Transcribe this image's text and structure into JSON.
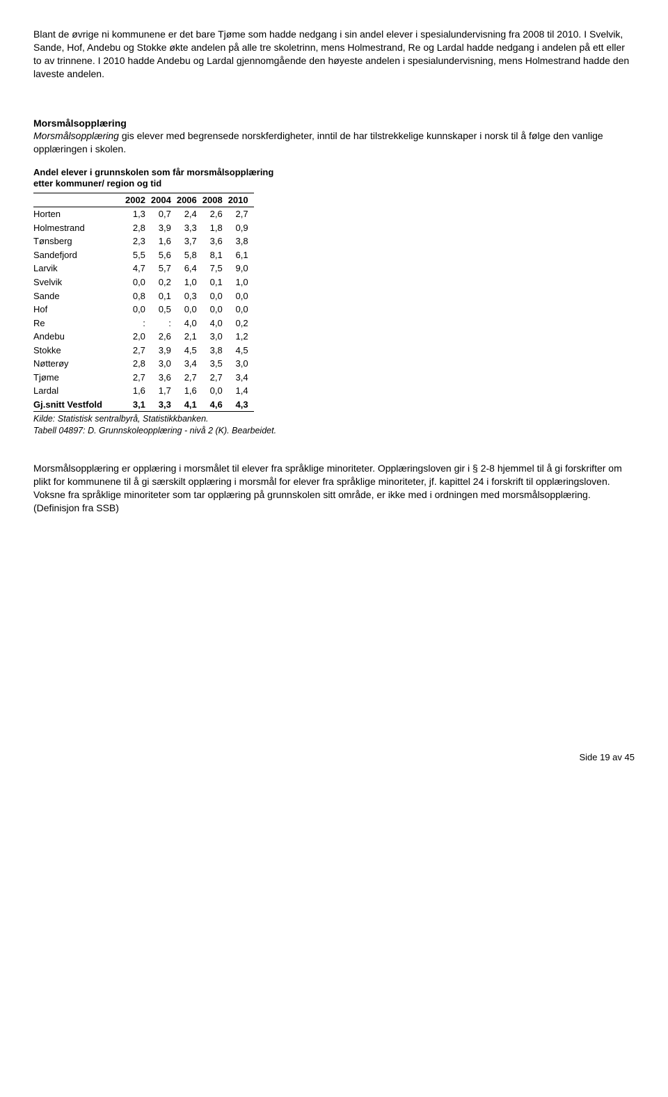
{
  "para1": "Blant de øvrige ni kommunene er det bare Tjøme som hadde nedgang i sin andel elever i spesialundervisning fra 2008 til 2010. I Svelvik, Sande, Hof, Andebu og Stokke økte andelen på alle tre skoletrinn, mens Holmestrand, Re og Lardal hadde nedgang i andelen på ett eller to av trinnene. I 2010 hadde Andebu og Lardal gjennomgående den høyeste andelen i spesialundervisning, mens Holmestrand hadde den laveste andelen.",
  "heading2": "Morsmålsopplæring",
  "para2_lead_italic": "Morsmålsopplæring",
  "para2_rest": " gis elever med begrensede norskferdigheter, inntil de har tilstrekkelige kunnskaper i norsk til å følge den vanlige opplæringen i skolen.",
  "table": {
    "caption_l1": "Andel elever i grunnskolen som får morsmålsopplæring",
    "caption_l2": "etter kommuner/ region og tid",
    "columns": [
      "",
      "2002",
      "2004",
      "2006",
      "2008",
      "2010"
    ],
    "rows": [
      [
        "Horten",
        "1,3",
        "0,7",
        "2,4",
        "2,6",
        "2,7"
      ],
      [
        "Holmestrand",
        "2,8",
        "3,9",
        "3,3",
        "1,8",
        "0,9"
      ],
      [
        "Tønsberg",
        "2,3",
        "1,6",
        "3,7",
        "3,6",
        "3,8"
      ],
      [
        "Sandefjord",
        "5,5",
        "5,6",
        "5,8",
        "8,1",
        "6,1"
      ],
      [
        "Larvik",
        "4,7",
        "5,7",
        "6,4",
        "7,5",
        "9,0"
      ],
      [
        "Svelvik",
        "0,0",
        "0,2",
        "1,0",
        "0,1",
        "1,0"
      ],
      [
        "Sande",
        "0,8",
        "0,1",
        "0,3",
        "0,0",
        "0,0"
      ],
      [
        "Hof",
        "0,0",
        "0,5",
        "0,0",
        "0,0",
        "0,0"
      ],
      [
        "Re",
        ":",
        ":",
        "4,0",
        "4,0",
        "0,2"
      ],
      [
        "Andebu",
        "2,0",
        "2,6",
        "2,1",
        "3,0",
        "1,2"
      ],
      [
        "Stokke",
        "2,7",
        "3,9",
        "4,5",
        "3,8",
        "4,5"
      ],
      [
        "Nøtterøy",
        "2,8",
        "3,0",
        "3,4",
        "3,5",
        "3,0"
      ],
      [
        "Tjøme",
        "2,7",
        "3,6",
        "2,7",
        "2,7",
        "3,4"
      ],
      [
        "Lardal",
        "1,6",
        "1,7",
        "1,6",
        "0,0",
        "1,4"
      ],
      [
        "Gj.snitt Vestfold",
        "3,1",
        "3,3",
        "4,1",
        "4,6",
        "4,3"
      ]
    ],
    "source_l1": "Kilde: Statistisk sentralbyrå, Statistikkbanken.",
    "source_l2": "Tabell 04897: D. Grunnskoleopplæring - nivå 2 (K). Bearbeidet."
  },
  "para3": "Morsmålsopplæring er opplæring i morsmålet til elever fra språklige minoriteter. Opplæringsloven gir i § 2-8 hjemmel til å gi forskrifter om plikt for kommunene til å gi særskilt opplæring i morsmål for elever fra språklige minoriteter, jf. kapittel 24 i forskrift til opplæringsloven. Voksne fra språklige minoriteter som tar opplæring på grunnskolen sitt område, er ikke med i ordningen med morsmålsopplæring. (Definisjon fra SSB)",
  "footer": "Side 19 av 45"
}
